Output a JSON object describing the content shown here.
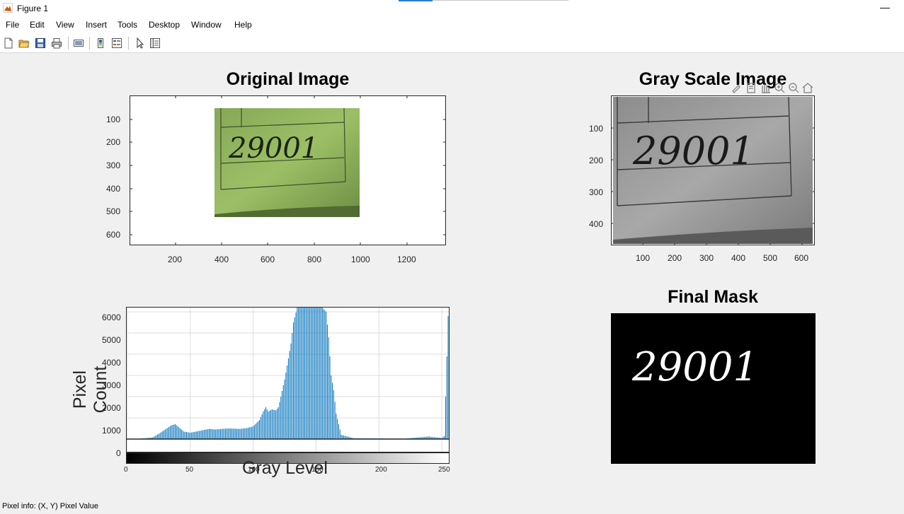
{
  "window": {
    "title": "Figure 1"
  },
  "menu": [
    "File",
    "Edit",
    "View",
    "Insert",
    "Tools",
    "Desktop",
    "Window",
    "Help"
  ],
  "toolbar": [
    "new-figure",
    "open-file",
    "save",
    "print",
    "link-data",
    "insert-colorbar",
    "insert-legend",
    "edit-plot",
    "property-inspector"
  ],
  "axes_toolbar": [
    "brush",
    "data-tips",
    "pan",
    "zoom-in",
    "zoom-out",
    "restore-view"
  ],
  "plots": {
    "original": {
      "title": "Original Image",
      "y_ticks": [
        "100",
        "200",
        "300",
        "400",
        "500",
        "600"
      ],
      "x_ticks": [
        "200",
        "400",
        "600",
        "800",
        "1000",
        "1200"
      ],
      "handwriting": "29001"
    },
    "gray": {
      "title": "Gray Scale Image",
      "y_ticks": [
        "100",
        "200",
        "300",
        "400"
      ],
      "x_ticks": [
        "100",
        "200",
        "300",
        "400",
        "500",
        "600"
      ],
      "handwriting": "29001"
    },
    "histogram": {
      "y_ticks": [
        "6000",
        "5000",
        "4000",
        "3000",
        "2000",
        "1000",
        "0"
      ],
      "x_ticks": [
        "0",
        "50",
        "100",
        "150",
        "200",
        "250"
      ],
      "ylabel": "Pixel Count",
      "xlabel": "Gray Level"
    },
    "mask": {
      "title": "Final Mask",
      "handwriting": "29001"
    }
  },
  "chart_data": {
    "type": "bar",
    "title": "",
    "xlabel": "Gray Level",
    "ylabel": "Pixel Count",
    "xlim": [
      0,
      255
    ],
    "ylim": [
      -600,
      6200
    ],
    "grid": true,
    "x": [
      0,
      10,
      20,
      25,
      30,
      35,
      38,
      40,
      45,
      50,
      60,
      65,
      70,
      75,
      80,
      90,
      95,
      100,
      105,
      108,
      110,
      112,
      115,
      118,
      120,
      122,
      125,
      128,
      130,
      132,
      135,
      138,
      140,
      143,
      146,
      149,
      152,
      155,
      158,
      160,
      162,
      164,
      166,
      170,
      180,
      200,
      220,
      240,
      242,
      250,
      252,
      253,
      255
    ],
    "values": [
      0,
      20,
      80,
      250,
      450,
      650,
      700,
      600,
      350,
      300,
      420,
      480,
      450,
      480,
      500,
      480,
      520,
      600,
      900,
      1300,
      1500,
      1300,
      1400,
      1350,
      1500,
      2000,
      2800,
      3800,
      4500,
      5500,
      6200,
      6200,
      6200,
      6200,
      6200,
      6200,
      6200,
      6200,
      6000,
      4800,
      3000,
      2300,
      1200,
      200,
      40,
      30,
      20,
      120,
      100,
      50,
      150,
      2000,
      5800
    ]
  },
  "status": {
    "pixel_info_label": "Pixel info:",
    "pixel_info_value": "(X, Y)  Pixel Value"
  }
}
